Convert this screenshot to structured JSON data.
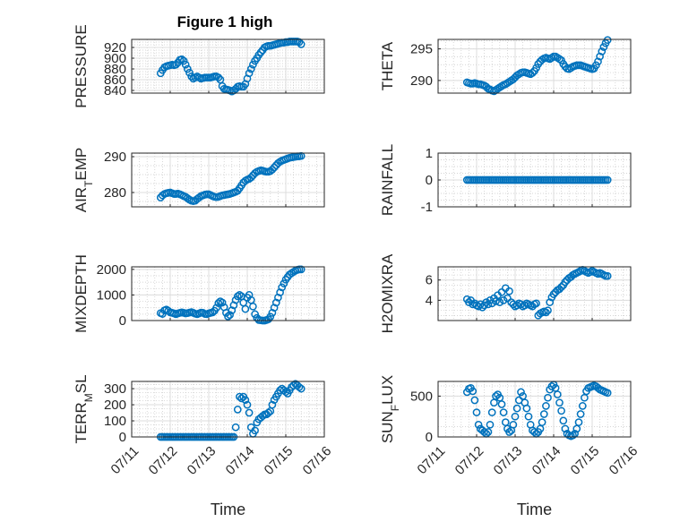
{
  "figure_title": "Figure 1 high",
  "chart_data": [
    {
      "type": "scatter",
      "title": "Figure 1 high",
      "ylabel": "PRESSURE",
      "ylabel_parts": [
        {
          "t": "PRESSURE"
        }
      ],
      "xlim": [
        0,
        5
      ],
      "ylim": [
        835,
        935
      ],
      "yticks": [
        840,
        860,
        880,
        900,
        920
      ],
      "xticks": [],
      "xlabel": "",
      "x": [
        0.75,
        0.8,
        0.85,
        0.9,
        0.95,
        1.0,
        1.05,
        1.1,
        1.15,
        1.2,
        1.25,
        1.3,
        1.35,
        1.4,
        1.45,
        1.5,
        1.55,
        1.6,
        1.65,
        1.7,
        1.75,
        1.8,
        1.85,
        1.9,
        1.95,
        2.0,
        2.05,
        2.1,
        2.15,
        2.2,
        2.25,
        2.3,
        2.35,
        2.4,
        2.45,
        2.5,
        2.55,
        2.6,
        2.65,
        2.7,
        2.75,
        2.8,
        2.85,
        2.9,
        2.95,
        3.0,
        3.05,
        3.1,
        3.15,
        3.2,
        3.25,
        3.3,
        3.35,
        3.4,
        3.45,
        3.5,
        3.55,
        3.6,
        3.65,
        3.7,
        3.75,
        3.8,
        3.85,
        3.9,
        3.95,
        4.0,
        4.05,
        4.1,
        4.15,
        4.2,
        4.25,
        4.3,
        4.35,
        4.4
      ],
      "y": [
        872,
        878,
        883,
        885,
        886,
        887,
        888,
        887,
        888,
        892,
        897,
        898,
        895,
        888,
        880,
        873,
        866,
        862,
        864,
        866,
        864,
        862,
        863,
        864,
        864,
        864,
        864,
        865,
        866,
        866,
        864,
        860,
        848,
        843,
        842,
        841,
        840,
        838,
        840,
        843,
        847,
        848,
        847,
        847,
        852,
        862,
        872,
        880,
        888,
        895,
        900,
        906,
        911,
        915,
        920,
        922,
        923,
        923,
        924,
        925,
        926,
        927,
        928,
        929,
        929,
        930,
        930,
        931,
        931,
        931,
        931,
        931,
        930,
        926
      ]
    },
    {
      "type": "scatter",
      "title": "",
      "ylabel": "THETA",
      "ylabel_parts": [
        {
          "t": "THETA"
        }
      ],
      "xlim": [
        0,
        5
      ],
      "ylim": [
        288,
        296.5
      ],
      "yticks": [
        290,
        295
      ],
      "xticks": [],
      "xlabel": "",
      "x": [
        0.75,
        0.8,
        0.85,
        0.9,
        0.95,
        1.0,
        1.05,
        1.1,
        1.15,
        1.2,
        1.25,
        1.3,
        1.35,
        1.4,
        1.45,
        1.5,
        1.55,
        1.6,
        1.65,
        1.7,
        1.75,
        1.8,
        1.85,
        1.9,
        1.95,
        2.0,
        2.05,
        2.1,
        2.15,
        2.2,
        2.25,
        2.3,
        2.35,
        2.4,
        2.45,
        2.5,
        2.55,
        2.6,
        2.65,
        2.7,
        2.75,
        2.8,
        2.85,
        2.9,
        2.95,
        3.0,
        3.05,
        3.1,
        3.15,
        3.2,
        3.25,
        3.3,
        3.35,
        3.4,
        3.45,
        3.5,
        3.55,
        3.6,
        3.65,
        3.7,
        3.75,
        3.8,
        3.85,
        3.9,
        3.95,
        4.0,
        4.05,
        4.1,
        4.15,
        4.2,
        4.25,
        4.3,
        4.35,
        4.4
      ],
      "y": [
        289.7,
        289.6,
        289.5,
        289.5,
        289.6,
        289.5,
        289.4,
        289.4,
        289.3,
        289.2,
        289.0,
        288.7,
        288.6,
        288.4,
        288.3,
        288.5,
        288.7,
        288.9,
        289.1,
        289.3,
        289.4,
        289.6,
        289.8,
        290.0,
        290.2,
        290.5,
        290.8,
        291.0,
        291.2,
        291.3,
        291.3,
        291.2,
        291.1,
        291.0,
        291.2,
        291.5,
        292.0,
        292.6,
        293.0,
        293.3,
        293.5,
        293.6,
        293.5,
        293.4,
        293.6,
        293.8,
        293.8,
        293.6,
        293.4,
        293.2,
        292.6,
        292.2,
        291.9,
        291.8,
        292.0,
        292.2,
        292.3,
        292.4,
        292.4,
        292.4,
        292.3,
        292.2,
        292.1,
        292.0,
        291.9,
        291.8,
        291.9,
        292.4,
        293.0,
        293.8,
        294.6,
        295.3,
        295.9,
        296.4
      ]
    },
    {
      "type": "scatter",
      "title": "",
      "ylabel": "AIR_TEMP",
      "ylabel_parts": [
        {
          "t": "AIR"
        },
        {
          "t": "T",
          "sub": true
        },
        {
          "t": "EMP"
        }
      ],
      "xlim": [
        0,
        5
      ],
      "ylim": [
        276,
        291
      ],
      "yticks": [
        280,
        290
      ],
      "xticks": [],
      "xlabel": "",
      "x": [
        0.75,
        0.8,
        0.85,
        0.9,
        0.95,
        1.0,
        1.05,
        1.1,
        1.15,
        1.2,
        1.25,
        1.3,
        1.35,
        1.4,
        1.45,
        1.5,
        1.55,
        1.6,
        1.65,
        1.7,
        1.75,
        1.8,
        1.85,
        1.9,
        1.95,
        2.0,
        2.05,
        2.1,
        2.15,
        2.2,
        2.25,
        2.3,
        2.35,
        2.4,
        2.45,
        2.5,
        2.55,
        2.6,
        2.65,
        2.7,
        2.75,
        2.8,
        2.85,
        2.9,
        2.95,
        3.0,
        3.05,
        3.1,
        3.15,
        3.2,
        3.25,
        3.3,
        3.35,
        3.4,
        3.45,
        3.5,
        3.55,
        3.6,
        3.65,
        3.7,
        3.75,
        3.8,
        3.85,
        3.9,
        3.95,
        4.0,
        4.05,
        4.1,
        4.15,
        4.2,
        4.25,
        4.3,
        4.35,
        4.4
      ],
      "y": [
        278.6,
        279.2,
        279.6,
        279.8,
        279.9,
        280.0,
        279.8,
        279.6,
        279.6,
        279.7,
        279.5,
        279.3,
        279.0,
        278.8,
        278.4,
        278.0,
        277.7,
        277.6,
        277.7,
        278.2,
        278.6,
        279.0,
        279.2,
        279.4,
        279.5,
        279.5,
        279.3,
        279.0,
        278.8,
        278.7,
        278.8,
        279.0,
        279.2,
        279.3,
        279.4,
        279.5,
        279.6,
        279.8,
        280.0,
        280.2,
        280.5,
        281.2,
        282.0,
        282.8,
        283.3,
        283.6,
        283.8,
        284.2,
        284.8,
        285.4,
        285.8,
        286.0,
        286.2,
        286.1,
        285.9,
        285.8,
        285.8,
        286.0,
        286.4,
        287.0,
        287.6,
        288.2,
        288.6,
        288.9,
        289.1,
        289.3,
        289.5,
        289.7,
        289.8,
        289.9,
        290.0,
        290.1,
        290.1,
        290.2
      ]
    },
    {
      "type": "scatter",
      "title": "",
      "ylabel": "RAINFALL",
      "ylabel_parts": [
        {
          "t": "RAINFALL"
        }
      ],
      "xlim": [
        0,
        5
      ],
      "ylim": [
        -1,
        1
      ],
      "yticks": [
        -1,
        0,
        1
      ],
      "xticks": [],
      "xlabel": "",
      "x": [
        0.75,
        0.8,
        0.85,
        0.9,
        0.95,
        1.0,
        1.05,
        1.1,
        1.15,
        1.2,
        1.25,
        1.3,
        1.35,
        1.4,
        1.45,
        1.5,
        1.55,
        1.6,
        1.65,
        1.7,
        1.75,
        1.8,
        1.85,
        1.9,
        1.95,
        2.0,
        2.05,
        2.1,
        2.15,
        2.2,
        2.25,
        2.3,
        2.35,
        2.4,
        2.45,
        2.5,
        2.55,
        2.6,
        2.65,
        2.7,
        2.75,
        2.8,
        2.85,
        2.9,
        2.95,
        3.0,
        3.05,
        3.1,
        3.15,
        3.2,
        3.25,
        3.3,
        3.35,
        3.4,
        3.45,
        3.5,
        3.55,
        3.6,
        3.65,
        3.7,
        3.75,
        3.8,
        3.85,
        3.9,
        3.95,
        4.0,
        4.05,
        4.1,
        4.15,
        4.2,
        4.25,
        4.3,
        4.35,
        4.4
      ],
      "y": [
        0,
        0,
        0,
        0,
        0,
        0,
        0,
        0,
        0,
        0,
        0,
        0,
        0,
        0,
        0,
        0,
        0,
        0,
        0,
        0,
        0,
        0,
        0,
        0,
        0,
        0,
        0,
        0,
        0,
        0,
        0,
        0,
        0,
        0,
        0,
        0,
        0,
        0,
        0,
        0,
        0,
        0,
        0,
        0,
        0,
        0,
        0,
        0,
        0,
        0,
        0,
        0,
        0,
        0,
        0,
        0,
        0,
        0,
        0,
        0,
        0,
        0,
        0,
        0,
        0,
        0,
        0,
        0,
        0,
        0,
        0,
        0,
        0,
        0
      ]
    },
    {
      "type": "scatter",
      "title": "",
      "ylabel": "MIXDEPTH",
      "ylabel_parts": [
        {
          "t": "MIXDEPTH"
        }
      ],
      "xlim": [
        0,
        5
      ],
      "ylim": [
        0,
        2100
      ],
      "yticks": [
        0,
        1000,
        2000
      ],
      "xticks": [],
      "xlabel": "",
      "x": [
        0.75,
        0.8,
        0.85,
        0.9,
        0.95,
        1.0,
        1.05,
        1.1,
        1.15,
        1.2,
        1.25,
        1.3,
        1.35,
        1.4,
        1.45,
        1.5,
        1.55,
        1.6,
        1.65,
        1.7,
        1.75,
        1.8,
        1.85,
        1.9,
        1.95,
        2.0,
        2.05,
        2.1,
        2.15,
        2.2,
        2.25,
        2.3,
        2.35,
        2.4,
        2.45,
        2.5,
        2.55,
        2.6,
        2.65,
        2.7,
        2.75,
        2.8,
        2.85,
        2.9,
        2.95,
        3.0,
        3.05,
        3.1,
        3.15,
        3.2,
        3.25,
        3.3,
        3.35,
        3.4,
        3.45,
        3.5,
        3.55,
        3.6,
        3.65,
        3.7,
        3.75,
        3.8,
        3.85,
        3.9,
        3.95,
        4.0,
        4.05,
        4.1,
        4.15,
        4.2,
        4.25,
        4.3,
        4.35,
        4.4
      ],
      "y": [
        290,
        260,
        400,
        430,
        380,
        320,
        300,
        280,
        250,
        280,
        300,
        320,
        300,
        280,
        290,
        310,
        330,
        300,
        270,
        250,
        280,
        310,
        300,
        260,
        250,
        280,
        300,
        320,
        380,
        500,
        680,
        750,
        700,
        520,
        300,
        160,
        220,
        400,
        600,
        800,
        950,
        1000,
        950,
        700,
        450,
        900,
        1000,
        800,
        550,
        250,
        100,
        20,
        10,
        0,
        0,
        20,
        50,
        150,
        300,
        500,
        700,
        900,
        1100,
        1300,
        1450,
        1600,
        1700,
        1800,
        1850,
        1900,
        1950,
        1980,
        2000,
        2000
      ]
    },
    {
      "type": "scatter",
      "title": "",
      "ylabel": "H2OMIXRA",
      "ylabel_parts": [
        {
          "t": "H2OMIXRA"
        }
      ],
      "xlim": [
        0,
        5
      ],
      "ylim": [
        2,
        7.3
      ],
      "yticks": [
        4,
        6
      ],
      "xticks": [],
      "xlabel": "",
      "x": [
        0.75,
        0.8,
        0.85,
        0.9,
        0.95,
        1.0,
        1.05,
        1.1,
        1.15,
        1.2,
        1.25,
        1.3,
        1.35,
        1.4,
        1.45,
        1.5,
        1.55,
        1.6,
        1.65,
        1.7,
        1.75,
        1.8,
        1.85,
        1.9,
        1.95,
        2.0,
        2.05,
        2.1,
        2.15,
        2.2,
        2.25,
        2.3,
        2.35,
        2.4,
        2.45,
        2.5,
        2.55,
        2.6,
        2.65,
        2.7,
        2.75,
        2.8,
        2.85,
        2.9,
        2.95,
        3.0,
        3.05,
        3.1,
        3.15,
        3.2,
        3.25,
        3.3,
        3.35,
        3.4,
        3.45,
        3.5,
        3.55,
        3.6,
        3.65,
        3.7,
        3.75,
        3.8,
        3.85,
        3.9,
        3.95,
        4.0,
        4.05,
        4.1,
        4.15,
        4.2,
        4.25,
        4.3,
        4.35,
        4.4
      ],
      "y": [
        4.1,
        3.8,
        4.0,
        3.6,
        3.7,
        3.5,
        3.4,
        3.6,
        3.3,
        3.5,
        3.8,
        3.6,
        4.0,
        3.7,
        4.2,
        3.9,
        4.5,
        3.8,
        4.8,
        4.0,
        5.2,
        4.2,
        4.9,
        3.8,
        3.6,
        3.4,
        3.5,
        3.7,
        3.6,
        3.4,
        3.5,
        3.7,
        3.6,
        3.5,
        3.4,
        3.6,
        3.7,
        2.5,
        2.7,
        2.8,
        2.9,
        2.8,
        3.0,
        3.8,
        4.3,
        4.6,
        4.8,
        5.0,
        5.1,
        5.3,
        5.5,
        5.8,
        6.0,
        6.2,
        6.3,
        6.5,
        6.6,
        6.7,
        6.8,
        6.9,
        7.0,
        6.9,
        6.8,
        6.7,
        6.8,
        6.9,
        6.8,
        6.7,
        6.6,
        6.7,
        6.6,
        6.5,
        6.4,
        6.4
      ]
    },
    {
      "type": "scatter",
      "title": "",
      "ylabel": "TERR_MSL",
      "ylabel_parts": [
        {
          "t": "TERR"
        },
        {
          "t": "M",
          "sub": true
        },
        {
          "t": "SL"
        }
      ],
      "xlim": [
        0,
        5
      ],
      "ylim": [
        0,
        345
      ],
      "yticks": [
        0,
        100,
        200,
        300
      ],
      "xticks": [
        "07/11",
        "07/12",
        "07/13",
        "07/14",
        "07/15",
        "07/16"
      ],
      "xlabel": "Time",
      "x": [
        0.75,
        0.8,
        0.85,
        0.9,
        0.95,
        1.0,
        1.05,
        1.1,
        1.15,
        1.2,
        1.25,
        1.3,
        1.35,
        1.4,
        1.45,
        1.5,
        1.55,
        1.6,
        1.65,
        1.7,
        1.75,
        1.8,
        1.85,
        1.9,
        1.95,
        2.0,
        2.05,
        2.1,
        2.15,
        2.2,
        2.25,
        2.3,
        2.35,
        2.4,
        2.45,
        2.5,
        2.55,
        2.6,
        2.65,
        2.7,
        2.75,
        2.8,
        2.85,
        2.9,
        2.95,
        3.0,
        3.05,
        3.1,
        3.15,
        3.2,
        3.25,
        3.3,
        3.35,
        3.4,
        3.45,
        3.5,
        3.55,
        3.6,
        3.65,
        3.7,
        3.75,
        3.8,
        3.85,
        3.9,
        3.95,
        4.0,
        4.05,
        4.1,
        4.15,
        4.2,
        4.25,
        4.3,
        4.35,
        4.4
      ],
      "y": [
        0,
        0,
        0,
        0,
        0,
        0,
        0,
        0,
        0,
        0,
        0,
        0,
        0,
        0,
        0,
        0,
        0,
        0,
        0,
        0,
        0,
        0,
        0,
        0,
        0,
        0,
        0,
        0,
        0,
        0,
        0,
        0,
        0,
        0,
        0,
        0,
        0,
        0,
        0,
        60,
        170,
        250,
        240,
        250,
        230,
        200,
        150,
        60,
        20,
        40,
        90,
        110,
        120,
        130,
        140,
        140,
        150,
        160,
        200,
        230,
        250,
        270,
        290,
        300,
        290,
        280,
        270,
        290,
        310,
        320,
        330,
        320,
        310,
        300
      ]
    },
    {
      "type": "scatter",
      "title": "",
      "ylabel": "SUN_FLUX",
      "ylabel_parts": [
        {
          "t": "SUN"
        },
        {
          "t": "F",
          "sub": true
        },
        {
          "t": "LUX"
        }
      ],
      "xlim": [
        0,
        5
      ],
      "ylim": [
        0,
        680
      ],
      "yticks": [
        0,
        500
      ],
      "xticks": [
        "07/11",
        "07/12",
        "07/13",
        "07/14",
        "07/15",
        "07/16"
      ],
      "xlabel": "Time",
      "x": [
        0.75,
        0.8,
        0.85,
        0.9,
        0.95,
        1.0,
        1.05,
        1.1,
        1.15,
        1.2,
        1.25,
        1.3,
        1.35,
        1.4,
        1.45,
        1.5,
        1.55,
        1.6,
        1.65,
        1.7,
        1.75,
        1.8,
        1.85,
        1.9,
        1.95,
        2.0,
        2.05,
        2.1,
        2.15,
        2.2,
        2.25,
        2.3,
        2.35,
        2.4,
        2.45,
        2.5,
        2.55,
        2.6,
        2.65,
        2.7,
        2.75,
        2.8,
        2.85,
        2.9,
        2.95,
        3.0,
        3.05,
        3.1,
        3.15,
        3.2,
        3.25,
        3.3,
        3.35,
        3.4,
        3.45,
        3.5,
        3.55,
        3.6,
        3.65,
        3.7,
        3.75,
        3.8,
        3.85,
        3.9,
        3.95,
        4.0,
        4.05,
        4.1,
        4.15,
        4.2,
        4.25,
        4.3,
        4.35,
        4.4
      ],
      "y": [
        550,
        590,
        600,
        560,
        450,
        300,
        150,
        100,
        80,
        60,
        40,
        60,
        150,
        300,
        420,
        500,
        520,
        480,
        400,
        300,
        180,
        100,
        60,
        80,
        150,
        250,
        350,
        450,
        550,
        500,
        420,
        350,
        250,
        150,
        80,
        60,
        40,
        60,
        100,
        180,
        280,
        380,
        480,
        580,
        620,
        640,
        600,
        520,
        420,
        320,
        200,
        100,
        40,
        20,
        10,
        20,
        40,
        100,
        180,
        280,
        380,
        480,
        560,
        600,
        610,
        620,
        630,
        620,
        600,
        580,
        570,
        560,
        550,
        540
      ]
    }
  ]
}
